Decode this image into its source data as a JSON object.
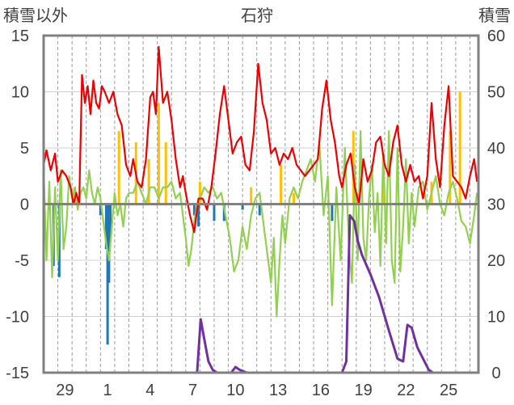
{
  "chart_data": {
    "type": "line",
    "title": "石狩",
    "left_axis_label": "積雪以外",
    "right_axis_label": "積雪",
    "left_ylim": [
      -15,
      15
    ],
    "left_yticks": [
      15,
      10,
      5,
      0,
      -5,
      -10,
      -15
    ],
    "right_ylim": [
      0,
      60
    ],
    "right_yticks": [
      60,
      50,
      40,
      30,
      20,
      10,
      0
    ],
    "xlim": [
      0,
      30.6
    ],
    "x_ticks": [
      {
        "x": 1.5,
        "label": "29"
      },
      {
        "x": 4.5,
        "label": "1"
      },
      {
        "x": 7.5,
        "label": "4"
      },
      {
        "x": 10.5,
        "label": "7"
      },
      {
        "x": 13.5,
        "label": "10"
      },
      {
        "x": 16.5,
        "label": "13"
      },
      {
        "x": 19.5,
        "label": "16"
      },
      {
        "x": 22.5,
        "label": "19"
      },
      {
        "x": 25.5,
        "label": "22"
      },
      {
        "x": 28.5,
        "label": "25"
      }
    ],
    "grid_x_every_day": true,
    "colors": {
      "temperature": "#ee0000",
      "secondary": "#92d050",
      "precip_positive": "#ffc000",
      "precip_negative": "#1f78b4",
      "snow_depth": "#7030a0",
      "zero_line": "#808080",
      "frame": "#808080"
    },
    "series": [
      {
        "axis": "left",
        "x": [
          0.0,
          0.2,
          0.5,
          0.8,
          1.0,
          1.3,
          1.6,
          1.9,
          2.1,
          2.3,
          2.5,
          2.7,
          2.9,
          3.1,
          3.3,
          3.5,
          3.7,
          3.9,
          4.1,
          4.3,
          4.6,
          4.9,
          5.2,
          5.5,
          5.8,
          6.1,
          6.3,
          6.6,
          6.9,
          7.2,
          7.5,
          7.7,
          7.9,
          8.1,
          8.4,
          8.7,
          9.0,
          9.3,
          9.6,
          9.8,
          10.0,
          10.3,
          10.6,
          10.9,
          11.2,
          11.5,
          11.8,
          12.1,
          12.4,
          12.7,
          13.0,
          13.3,
          13.6,
          13.9,
          14.2,
          14.5,
          14.8,
          15.1,
          15.4,
          15.7,
          16.0,
          16.3,
          16.6,
          16.9,
          17.2,
          17.5,
          17.8,
          18.1,
          18.4,
          18.7,
          19.0,
          19.3,
          19.6,
          19.9,
          20.2,
          20.5,
          20.8,
          21.0,
          21.3,
          21.6,
          21.9,
          22.2,
          22.5,
          22.8,
          23.1,
          23.4,
          23.7,
          24.0,
          24.3,
          24.6,
          24.9,
          25.2,
          25.5,
          25.8,
          26.1,
          26.4,
          26.7,
          27.0,
          27.3,
          27.6,
          27.9,
          28.2,
          28.5,
          28.8,
          29.1,
          29.4,
          29.7,
          30.0,
          30.3,
          30.5
        ],
        "values": [
          3.5,
          4.8,
          3.0,
          4.5,
          2.0,
          3.0,
          2.5,
          1.5,
          0.0,
          1.0,
          0.0,
          11.5,
          9.0,
          10.5,
          8.0,
          11.0,
          9.0,
          8.5,
          10.5,
          10.0,
          9.0,
          10.0,
          8.0,
          7.0,
          3.5,
          2.5,
          4.0,
          2.0,
          1.5,
          4.0,
          9.5,
          10.0,
          8.0,
          14.0,
          9.0,
          10.0,
          7.5,
          4.0,
          1.5,
          2.5,
          1.0,
          -1.0,
          -2.5,
          0.5,
          0.5,
          -0.5,
          1.5,
          4.5,
          8.0,
          10.5,
          7.5,
          4.5,
          5.5,
          6.0,
          3.5,
          3.0,
          6.5,
          12.5,
          9.0,
          7.5,
          4.5,
          5.0,
          3.5,
          4.5,
          4.0,
          5.0,
          3.5,
          3.0,
          2.5,
          3.0,
          3.5,
          4.0,
          8.5,
          11.0,
          7.5,
          5.5,
          2.5,
          1.5,
          3.5,
          4.5,
          1.5,
          0.0,
          4.0,
          2.0,
          3.0,
          5.5,
          6.0,
          3.5,
          2.5,
          5.5,
          7.0,
          3.5,
          2.0,
          3.5,
          2.0,
          2.5,
          0.5,
          2.5,
          9.0,
          4.0,
          1.5,
          7.0,
          10.5,
          2.5,
          2.0,
          1.5,
          0.5,
          2.5,
          4.0,
          2.0
        ]
      },
      {
        "axis": "left",
        "x": [
          0.0,
          0.2,
          0.4,
          0.6,
          0.8,
          1.0,
          1.2,
          1.4,
          1.6,
          1.8,
          2.0,
          2.2,
          2.4,
          2.6,
          2.8,
          3.0,
          3.2,
          3.4,
          3.6,
          3.8,
          4.0,
          4.2,
          4.4,
          4.6,
          4.8,
          5.0,
          5.2,
          5.4,
          5.6,
          5.8,
          6.0,
          6.3,
          6.6,
          6.9,
          7.2,
          7.5,
          7.8,
          8.1,
          8.4,
          8.7,
          9.0,
          9.3,
          9.6,
          9.8,
          10.0,
          10.2,
          10.4,
          10.6,
          10.8,
          11.0,
          11.3,
          11.6,
          11.9,
          12.2,
          12.5,
          12.8,
          13.1,
          13.4,
          13.7,
          14.0,
          14.3,
          14.6,
          14.9,
          15.2,
          15.5,
          15.8,
          16.0,
          16.2,
          16.4,
          16.6,
          16.8,
          17.0,
          17.3,
          17.6,
          17.9,
          18.2,
          18.5,
          18.8,
          19.1,
          19.4,
          19.7,
          20.0,
          20.3,
          20.6,
          20.9,
          21.2,
          21.5,
          21.7,
          21.9,
          22.1,
          22.3,
          22.5,
          22.7,
          22.9,
          23.1,
          23.3,
          23.5,
          23.7,
          23.9,
          24.1,
          24.3,
          24.5,
          24.7,
          24.9,
          25.1,
          25.3,
          25.5,
          25.7,
          25.9,
          26.1,
          26.4,
          26.7,
          27.0,
          27.3,
          27.6,
          27.9,
          28.2,
          28.5,
          28.8,
          29.1,
          29.4,
          29.7,
          30.0,
          30.3,
          30.5
        ],
        "values": [
          3.0,
          -5.0,
          2.0,
          -6.5,
          1.5,
          -5.0,
          3.0,
          -4.0,
          -2.0,
          2.5,
          0.5,
          1.5,
          -0.5,
          1.0,
          1.5,
          0.5,
          3.0,
          1.0,
          0.0,
          1.5,
          0.5,
          -1.5,
          -3.5,
          -5.0,
          -2.0,
          1.0,
          -1.0,
          0.0,
          -2.0,
          0.5,
          1.0,
          1.0,
          2.0,
          1.0,
          0.0,
          1.5,
          1.5,
          0.5,
          1.5,
          1.5,
          2.0,
          0.5,
          1.0,
          -1.0,
          -3.0,
          -5.5,
          -4.0,
          -1.5,
          0.0,
          0.5,
          1.5,
          1.0,
          1.5,
          0.5,
          1.0,
          -1.0,
          -3.0,
          -6.0,
          -5.0,
          -2.0,
          -4.0,
          -1.0,
          0.5,
          1.0,
          -2.0,
          -5.0,
          -7.0,
          -3.0,
          -10.0,
          -5.0,
          -1.0,
          -3.5,
          0.5,
          1.5,
          0.5,
          2.0,
          3.0,
          4.0,
          2.0,
          5.5,
          -1.0,
          2.5,
          -9.0,
          1.5,
          -5.0,
          5.0,
          -4.0,
          -7.0,
          3.5,
          -5.0,
          6.5,
          -3.0,
          -5.0,
          0.5,
          3.5,
          -2.5,
          1.0,
          -5.5,
          4.5,
          -3.5,
          6.5,
          -5.0,
          -7.0,
          5.0,
          -6.0,
          -2.0,
          4.0,
          -3.5,
          1.0,
          -2.0,
          1.5,
          2.0,
          -0.5,
          1.0,
          2.5,
          0.0,
          -1.0,
          1.0,
          2.0,
          0.5,
          -1.5,
          -2.0,
          -3.5,
          -1.0,
          1.0
        ]
      },
      {
        "axis": "left",
        "type": "bar",
        "x": [
          2.2,
          5.3,
          6.5,
          7.4,
          8.1,
          8.6,
          11.0,
          14.6,
          16.7,
          17.6,
          21.8,
          22.1,
          23.9,
          27.3,
          28.6,
          29.3
        ],
        "values": [
          1.5,
          6.5,
          5.5,
          4.0,
          9.0,
          5.5,
          2.0,
          1.5,
          3.5,
          1.0,
          6.5,
          1.0,
          4.5,
          2.0,
          6.5,
          10.0
        ]
      },
      {
        "axis": "left",
        "type": "bar",
        "x": [
          0.4,
          0.7,
          1.1,
          4.0,
          4.4,
          4.5,
          4.6,
          4.7,
          10.6,
          10.9,
          12.0,
          12.7,
          14.0,
          15.2,
          20.3,
          23.5
        ],
        "values": [
          -0.5,
          -5.5,
          -6.5,
          -1.0,
          -4.0,
          -12.5,
          -7.0,
          -3.0,
          -1.0,
          -2.0,
          -1.5,
          -1.5,
          -0.5,
          -1.0,
          -1.5,
          -0.5
        ]
      },
      {
        "axis": "right",
        "x": [
          0.0,
          10.8,
          11.05,
          11.3,
          11.6,
          11.9,
          12.2,
          13.2,
          13.5,
          13.8,
          14.3,
          21.0,
          21.3,
          21.55,
          21.85,
          22.1,
          22.4,
          23.0,
          23.6,
          24.3,
          24.9,
          25.3,
          25.6,
          25.9,
          26.3,
          26.7,
          27.1,
          27.4,
          30.6
        ],
        "values": [
          0.0,
          0.0,
          9.5,
          6.0,
          2.0,
          0.5,
          0.0,
          0.0,
          1.0,
          0.5,
          0.0,
          0.0,
          2.0,
          28.0,
          27.0,
          23.5,
          21.0,
          17.5,
          13.5,
          7.5,
          2.5,
          2.0,
          8.5,
          8.0,
          4.5,
          2.5,
          0.5,
          0.0,
          0.0
        ]
      }
    ]
  }
}
